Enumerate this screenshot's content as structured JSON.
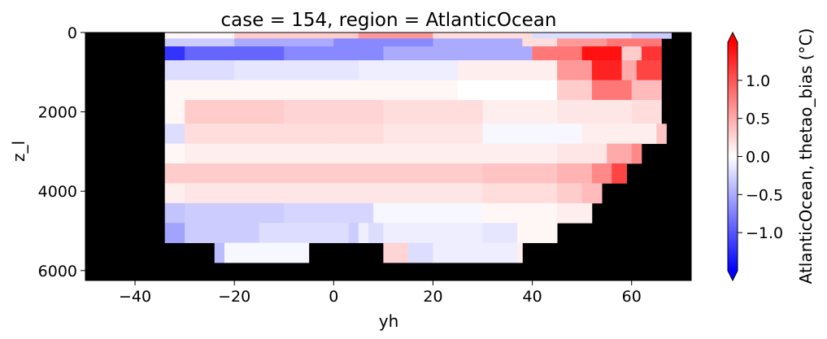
{
  "chart_data": {
    "type": "heatmap",
    "title": "case = 154, region = AtlanticOcean",
    "xlabel": "yh",
    "ylabel": "z_l",
    "colorbar_label": "AtlanticOcean, thetao_bias (°C)",
    "colormap": "bwr",
    "vmin": -1.5,
    "vmax": 1.5,
    "nodata_color": "#000000",
    "xlim": [
      -50,
      72
    ],
    "ylim": [
      6250,
      0
    ],
    "x_ticks": [
      -40,
      -20,
      0,
      20,
      40,
      60
    ],
    "x_tick_labels": [
      "−40",
      "−20",
      "0",
      "20",
      "40",
      "60"
    ],
    "y_ticks": [
      0,
      2000,
      4000,
      6000
    ],
    "y_tick_labels": [
      "0",
      "2000",
      "4000",
      "6000"
    ],
    "colorbar_ticks": [
      -1.0,
      -0.5,
      0.0,
      0.5,
      1.0
    ],
    "colorbar_tick_labels": [
      "−1.0",
      "−0.5",
      "0.0",
      "0.5",
      "1.0"
    ],
    "depth_layers": [
      {
        "top": 0,
        "bottom": 150,
        "values": [
          [
            -34,
            -20,
            0.05
          ],
          [
            -20,
            5,
            0.3
          ],
          [
            5,
            20,
            0.6
          ],
          [
            20,
            40,
            0.2
          ],
          [
            40,
            60,
            -0.2
          ],
          [
            60,
            68,
            -0.3
          ]
        ]
      },
      {
        "top": 150,
        "bottom": 350,
        "values": [
          [
            -34,
            -20,
            -0.3
          ],
          [
            -20,
            0,
            -0.5
          ],
          [
            0,
            20,
            -0.7
          ],
          [
            20,
            38,
            -0.5
          ],
          [
            38,
            45,
            0.2
          ],
          [
            45,
            55,
            0.6
          ],
          [
            55,
            66,
            0.8
          ]
        ]
      },
      {
        "top": 350,
        "bottom": 700,
        "values": [
          [
            -34,
            -30,
            -1.2
          ],
          [
            -30,
            -10,
            -0.9
          ],
          [
            -10,
            10,
            -0.7
          ],
          [
            10,
            40,
            -0.5
          ],
          [
            40,
            50,
            0.8
          ],
          [
            50,
            58,
            1.4
          ],
          [
            58,
            62,
            0.3
          ],
          [
            62,
            66,
            1.2
          ]
        ]
      },
      {
        "top": 700,
        "bottom": 1200,
        "values": [
          [
            -34,
            -20,
            -0.2
          ],
          [
            -20,
            5,
            -0.15
          ],
          [
            5,
            25,
            -0.1
          ],
          [
            25,
            45,
            0.1
          ],
          [
            45,
            52,
            0.6
          ],
          [
            52,
            58,
            1.3
          ],
          [
            58,
            61,
            0.5
          ],
          [
            61,
            66,
            1.1
          ]
        ]
      },
      {
        "top": 1200,
        "bottom": 1700,
        "values": [
          [
            -34,
            -20,
            0.05
          ],
          [
            -20,
            5,
            0.05
          ],
          [
            5,
            25,
            0.05
          ],
          [
            25,
            45,
            0.0
          ],
          [
            45,
            52,
            0.3
          ],
          [
            52,
            60,
            0.8
          ],
          [
            60,
            66,
            0.4
          ]
        ]
      },
      {
        "top": 1700,
        "bottom": 2300,
        "values": [
          [
            -34,
            -30,
            0.05
          ],
          [
            -30,
            -10,
            0.3
          ],
          [
            -10,
            10,
            0.25
          ],
          [
            10,
            30,
            0.2
          ],
          [
            30,
            45,
            0.1
          ],
          [
            45,
            60,
            0.15
          ],
          [
            60,
            66,
            0.2
          ]
        ]
      },
      {
        "top": 2300,
        "bottom": 2800,
        "values": [
          [
            -34,
            -30,
            -0.2
          ],
          [
            -30,
            -10,
            0.2
          ],
          [
            -10,
            10,
            0.2
          ],
          [
            10,
            30,
            0.15
          ],
          [
            30,
            50,
            -0.05
          ],
          [
            50,
            65,
            0.1
          ],
          [
            65,
            67,
            0.35
          ]
        ]
      },
      {
        "top": 2800,
        "bottom": 3300,
        "values": [
          [
            -34,
            -30,
            0.05
          ],
          [
            -30,
            0,
            0.1
          ],
          [
            0,
            30,
            0.1
          ],
          [
            30,
            45,
            0.1
          ],
          [
            45,
            55,
            0.15
          ],
          [
            55,
            60,
            0.5
          ],
          [
            60,
            62,
            0.7
          ]
        ]
      },
      {
        "top": 3300,
        "bottom": 3800,
        "values": [
          [
            -34,
            -30,
            0.3
          ],
          [
            -30,
            0,
            0.3
          ],
          [
            0,
            30,
            0.3
          ],
          [
            30,
            45,
            0.35
          ],
          [
            45,
            52,
            0.45
          ],
          [
            52,
            56,
            0.7
          ],
          [
            56,
            59,
            1.1
          ]
        ]
      },
      {
        "top": 3800,
        "bottom": 4300,
        "values": [
          [
            -34,
            -30,
            0.1
          ],
          [
            -30,
            0,
            0.15
          ],
          [
            0,
            30,
            0.15
          ],
          [
            30,
            45,
            0.2
          ],
          [
            45,
            50,
            0.3
          ],
          [
            50,
            54,
            0.4
          ]
        ]
      },
      {
        "top": 4300,
        "bottom": 4800,
        "values": [
          [
            -34,
            -30,
            -0.35
          ],
          [
            -30,
            -10,
            -0.3
          ],
          [
            -10,
            8,
            -0.25
          ],
          [
            8,
            30,
            -0.05
          ],
          [
            30,
            45,
            0.05
          ],
          [
            45,
            52,
            0.1
          ]
        ]
      },
      {
        "top": 4800,
        "bottom": 5300,
        "values": [
          [
            -34,
            -30,
            -0.55
          ],
          [
            -30,
            -15,
            -0.3
          ],
          [
            -15,
            3,
            -0.2
          ],
          [
            3,
            5,
            -0.3
          ],
          [
            5,
            7,
            -0.1
          ],
          [
            7,
            10,
            -0.2
          ],
          [
            10,
            30,
            -0.1
          ],
          [
            30,
            37,
            -0.15
          ],
          [
            37,
            45,
            0.05
          ]
        ]
      },
      {
        "top": 5300,
        "bottom": 5800,
        "values": [
          [
            -24,
            -22,
            -0.4
          ],
          [
            -22,
            -5,
            -0.05
          ],
          [
            10,
            15,
            0.25
          ],
          [
            15,
            20,
            -0.2
          ],
          [
            20,
            37,
            -0.1
          ],
          [
            37,
            38,
            0.1
          ]
        ]
      }
    ]
  }
}
